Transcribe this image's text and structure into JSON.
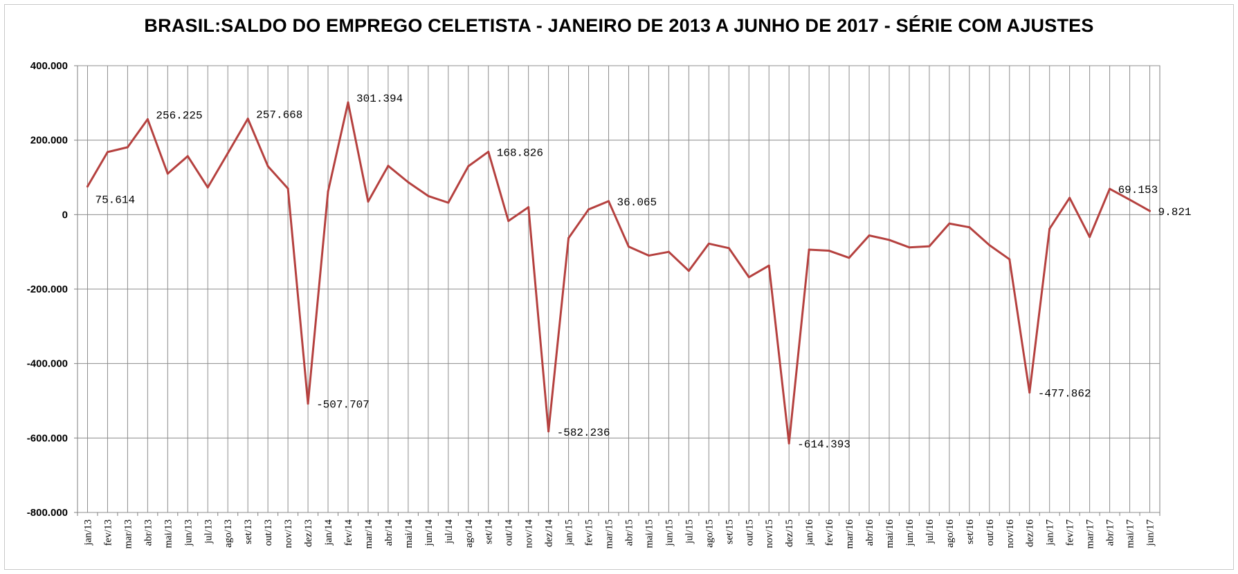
{
  "chart_data": {
    "type": "line",
    "title": "BRASIL:SALDO DO EMPREGO CELETISTA - JANEIRO DE 2013 A JUNHO DE 2017 - SÉRIE COM AJUSTES",
    "xlabel": "",
    "ylabel": "",
    "ylim": [
      -800000,
      400000
    ],
    "yticks": [
      400000,
      200000,
      0,
      -200000,
      -400000,
      -600000,
      -800000
    ],
    "ytick_labels": [
      "400.000",
      "200.000",
      "0",
      "-200.000",
      "-400.000",
      "-600.000",
      "-800.000"
    ],
    "grid": true,
    "legend": "none",
    "line_color": "#b5413f",
    "categories": [
      "jan/13",
      "fev/13",
      "mar/13",
      "abr/13",
      "mai/13",
      "jun/13",
      "jul/13",
      "ago/13",
      "set/13",
      "out/13",
      "nov/13",
      "dez/13",
      "jan/14",
      "fev/14",
      "mar/14",
      "abr/14",
      "mai/14",
      "jun/14",
      "jul/14",
      "ago/14",
      "set/14",
      "out/14",
      "nov/14",
      "dez/14",
      "jan/15",
      "fev/15",
      "mar/15",
      "abr/15",
      "mai/15",
      "jun/15",
      "jul/15",
      "ago/15",
      "set/15",
      "out/15",
      "nov/15",
      "dez/15",
      "jan/16",
      "fev/16",
      "mar/16",
      "abr/16",
      "mai/16",
      "jun/16",
      "jul/16",
      "ago/16",
      "set/16",
      "out/16",
      "nov/16",
      "dez/16",
      "jan/17",
      "fev/17",
      "mar/17",
      "abr/17",
      "mai/17",
      "jun/17"
    ],
    "series": [
      {
        "values": [
          75614,
          168000,
          181000,
          256225,
          110000,
          157000,
          73000,
          165000,
          257668,
          130000,
          70000,
          -507707,
          62000,
          301394,
          35000,
          131000,
          87000,
          50000,
          32000,
          130000,
          168826,
          -17000,
          20000,
          -582236,
          -63000,
          14000,
          36065,
          -86000,
          -110000,
          -100000,
          -151000,
          -78000,
          -90000,
          -168000,
          -137000,
          -614393,
          -94000,
          -97000,
          -116000,
          -56000,
          -68000,
          -88000,
          -85000,
          -24000,
          -34000,
          -82000,
          -120000,
          -477862,
          -38000,
          45000,
          -60000,
          69153,
          40000,
          9821
        ]
      }
    ],
    "annotations": [
      {
        "index": 0,
        "text": "75.614",
        "pos": "below-right"
      },
      {
        "index": 3,
        "text": "256.225",
        "pos": "right"
      },
      {
        "index": 8,
        "text": "257.668",
        "pos": "right"
      },
      {
        "index": 11,
        "text": "-507.707",
        "pos": "right"
      },
      {
        "index": 13,
        "text": "301.394",
        "pos": "right"
      },
      {
        "index": 20,
        "text": "168.826",
        "pos": "right"
      },
      {
        "index": 23,
        "text": "-582.236",
        "pos": "right"
      },
      {
        "index": 26,
        "text": "36.065",
        "pos": "right"
      },
      {
        "index": 35,
        "text": "-614.393",
        "pos": "right"
      },
      {
        "index": 47,
        "text": "-477.862",
        "pos": "right"
      },
      {
        "index": 51,
        "text": "69.153",
        "pos": "right"
      },
      {
        "index": 53,
        "text": "9.821",
        "pos": "right"
      }
    ]
  }
}
